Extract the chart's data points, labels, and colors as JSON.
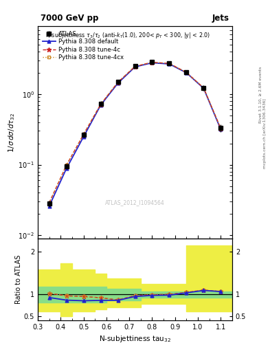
{
  "title_top": "7000 GeV pp",
  "title_right": "Jets",
  "watermark": "ATLAS_2012_I1094564",
  "x_centers": [
    0.35,
    0.425,
    0.5,
    0.575,
    0.65,
    0.725,
    0.8,
    0.875,
    0.95,
    1.025,
    1.1
  ],
  "x_edges": [
    0.3,
    0.4,
    0.45,
    0.5,
    0.55,
    0.6,
    0.65,
    0.7,
    0.75,
    0.85,
    0.95,
    1.15
  ],
  "atlas_y": [
    0.028,
    0.095,
    0.265,
    0.73,
    1.48,
    2.48,
    2.82,
    2.72,
    2.02,
    1.22,
    0.33
  ],
  "atlas_yerr": [
    0.003,
    0.008,
    0.025,
    0.06,
    0.12,
    0.18,
    0.2,
    0.18,
    0.14,
    0.1,
    0.04
  ],
  "pythia_default_y": [
    0.026,
    0.088,
    0.248,
    0.695,
    1.415,
    2.41,
    2.755,
    2.65,
    1.99,
    1.2,
    0.315
  ],
  "pythia_4c_y": [
    0.029,
    0.098,
    0.268,
    0.715,
    1.46,
    2.45,
    2.8,
    2.7,
    2.01,
    1.22,
    0.325
  ],
  "pythia_4cx_y": [
    0.029,
    0.098,
    0.268,
    0.715,
    1.46,
    2.45,
    2.8,
    2.7,
    2.01,
    1.22,
    0.325
  ],
  "ratio_x": [
    0.35,
    0.425,
    0.5,
    0.575,
    0.65,
    0.725,
    0.8,
    0.875,
    0.95,
    1.025,
    1.1
  ],
  "ratio_default": [
    0.93,
    0.87,
    0.855,
    0.865,
    0.865,
    0.955,
    0.98,
    0.985,
    1.04,
    1.095,
    1.07
  ],
  "ratio_4c": [
    1.03,
    0.97,
    0.955,
    0.925,
    0.875,
    0.975,
    0.995,
    1.005,
    1.05,
    1.105,
    1.07
  ],
  "ratio_4cx": [
    1.03,
    0.97,
    0.955,
    0.925,
    0.875,
    0.975,
    0.995,
    1.005,
    1.05,
    1.105,
    1.07
  ],
  "band_x_edges": [
    0.3,
    0.4,
    0.45,
    0.5,
    0.55,
    0.6,
    0.65,
    0.7,
    0.75,
    0.85,
    0.95,
    1.15
  ],
  "green_band_lo": [
    0.82,
    0.82,
    0.82,
    0.82,
    0.82,
    0.87,
    0.87,
    0.87,
    0.93,
    0.93,
    0.93
  ],
  "green_band_hi": [
    1.18,
    1.18,
    1.18,
    1.18,
    1.18,
    1.13,
    1.13,
    1.13,
    1.07,
    1.07,
    1.07
  ],
  "yellow_band_lo": [
    0.6,
    0.5,
    0.6,
    0.6,
    0.65,
    0.7,
    0.7,
    0.7,
    0.78,
    0.78,
    0.6
  ],
  "yellow_band_hi": [
    1.58,
    1.72,
    1.58,
    1.58,
    1.48,
    1.38,
    1.38,
    1.38,
    1.25,
    1.25,
    2.15
  ],
  "color_default": "#2222cc",
  "color_4c": "#cc2222",
  "color_4cx": "#cc8822",
  "color_atlas": "#000000",
  "color_green": "#88dd88",
  "color_yellow": "#eeee44",
  "xlim": [
    0.3,
    1.15
  ],
  "ylim_main": [
    0.009,
    9.0
  ],
  "ylim_ratio": [
    0.4,
    2.3
  ],
  "ratio_yticks": [
    0.5,
    1.0,
    2.0
  ],
  "ratio_yticklabels": [
    "0.5",
    "1",
    "2"
  ]
}
